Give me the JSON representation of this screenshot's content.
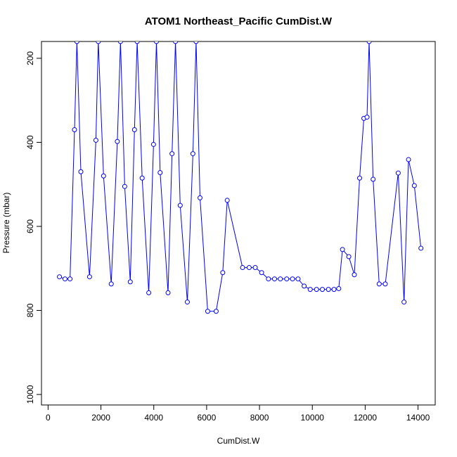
{
  "chart_data": {
    "type": "line",
    "title": "ATOM1 Northeast_Pacific CumDist.W",
    "xlabel": "CumDist.W",
    "ylabel": "Pressure (mbar)",
    "xlim": [
      -250,
      14650
    ],
    "ylim": [
      1025,
      160
    ],
    "y_reversed": true,
    "xticks": [
      "0",
      "2000",
      "4000",
      "6000",
      "8000",
      "10000",
      "12000",
      "14000"
    ],
    "xtick_values": [
      0,
      2000,
      4000,
      6000,
      8000,
      10000,
      12000,
      14000
    ],
    "yticks": [
      "200",
      "400",
      "600",
      "800",
      "1000"
    ],
    "ytick_values": [
      200,
      400,
      600,
      800,
      1000
    ],
    "grid": false,
    "legend": "none",
    "series": [
      {
        "color": "#0000ff",
        "marker": "open-circle",
        "x": [
          430,
          640,
          830,
          1000,
          1090,
          1240,
          1570,
          1810,
          1900,
          2100,
          2390,
          2620,
          2740,
          2900,
          3110,
          3270,
          3370,
          3560,
          3810,
          3990,
          4100,
          4240,
          4540,
          4690,
          4820,
          5000,
          5270,
          5480,
          5600,
          5750,
          6040,
          6360,
          6610,
          6780,
          7360,
          7610,
          7840,
          8080,
          8340,
          8570,
          8790,
          9030,
          9250,
          9460,
          9690,
          9920,
          10160,
          10380,
          10610,
          10820,
          11000,
          11140,
          11380,
          11590,
          11790,
          11950,
          12070,
          12150,
          12300,
          12530,
          12760,
          13250,
          13470,
          13640,
          13860,
          14110
        ],
        "y": [
          720,
          725,
          725,
          370,
          160,
          470,
          720,
          395,
          160,
          480,
          737,
          398,
          160,
          505,
          732,
          370,
          160,
          485,
          758,
          405,
          160,
          472,
          758,
          427,
          160,
          550,
          780,
          427,
          160,
          532,
          802,
          802,
          710,
          538,
          698,
          698,
          698,
          710,
          725,
          725,
          725,
          725,
          725,
          725,
          742,
          750,
          750,
          750,
          750,
          750,
          748,
          655,
          672,
          715,
          485,
          343,
          340,
          160,
          488,
          737,
          737,
          473,
          780,
          441,
          503,
          652
        ]
      }
    ]
  }
}
